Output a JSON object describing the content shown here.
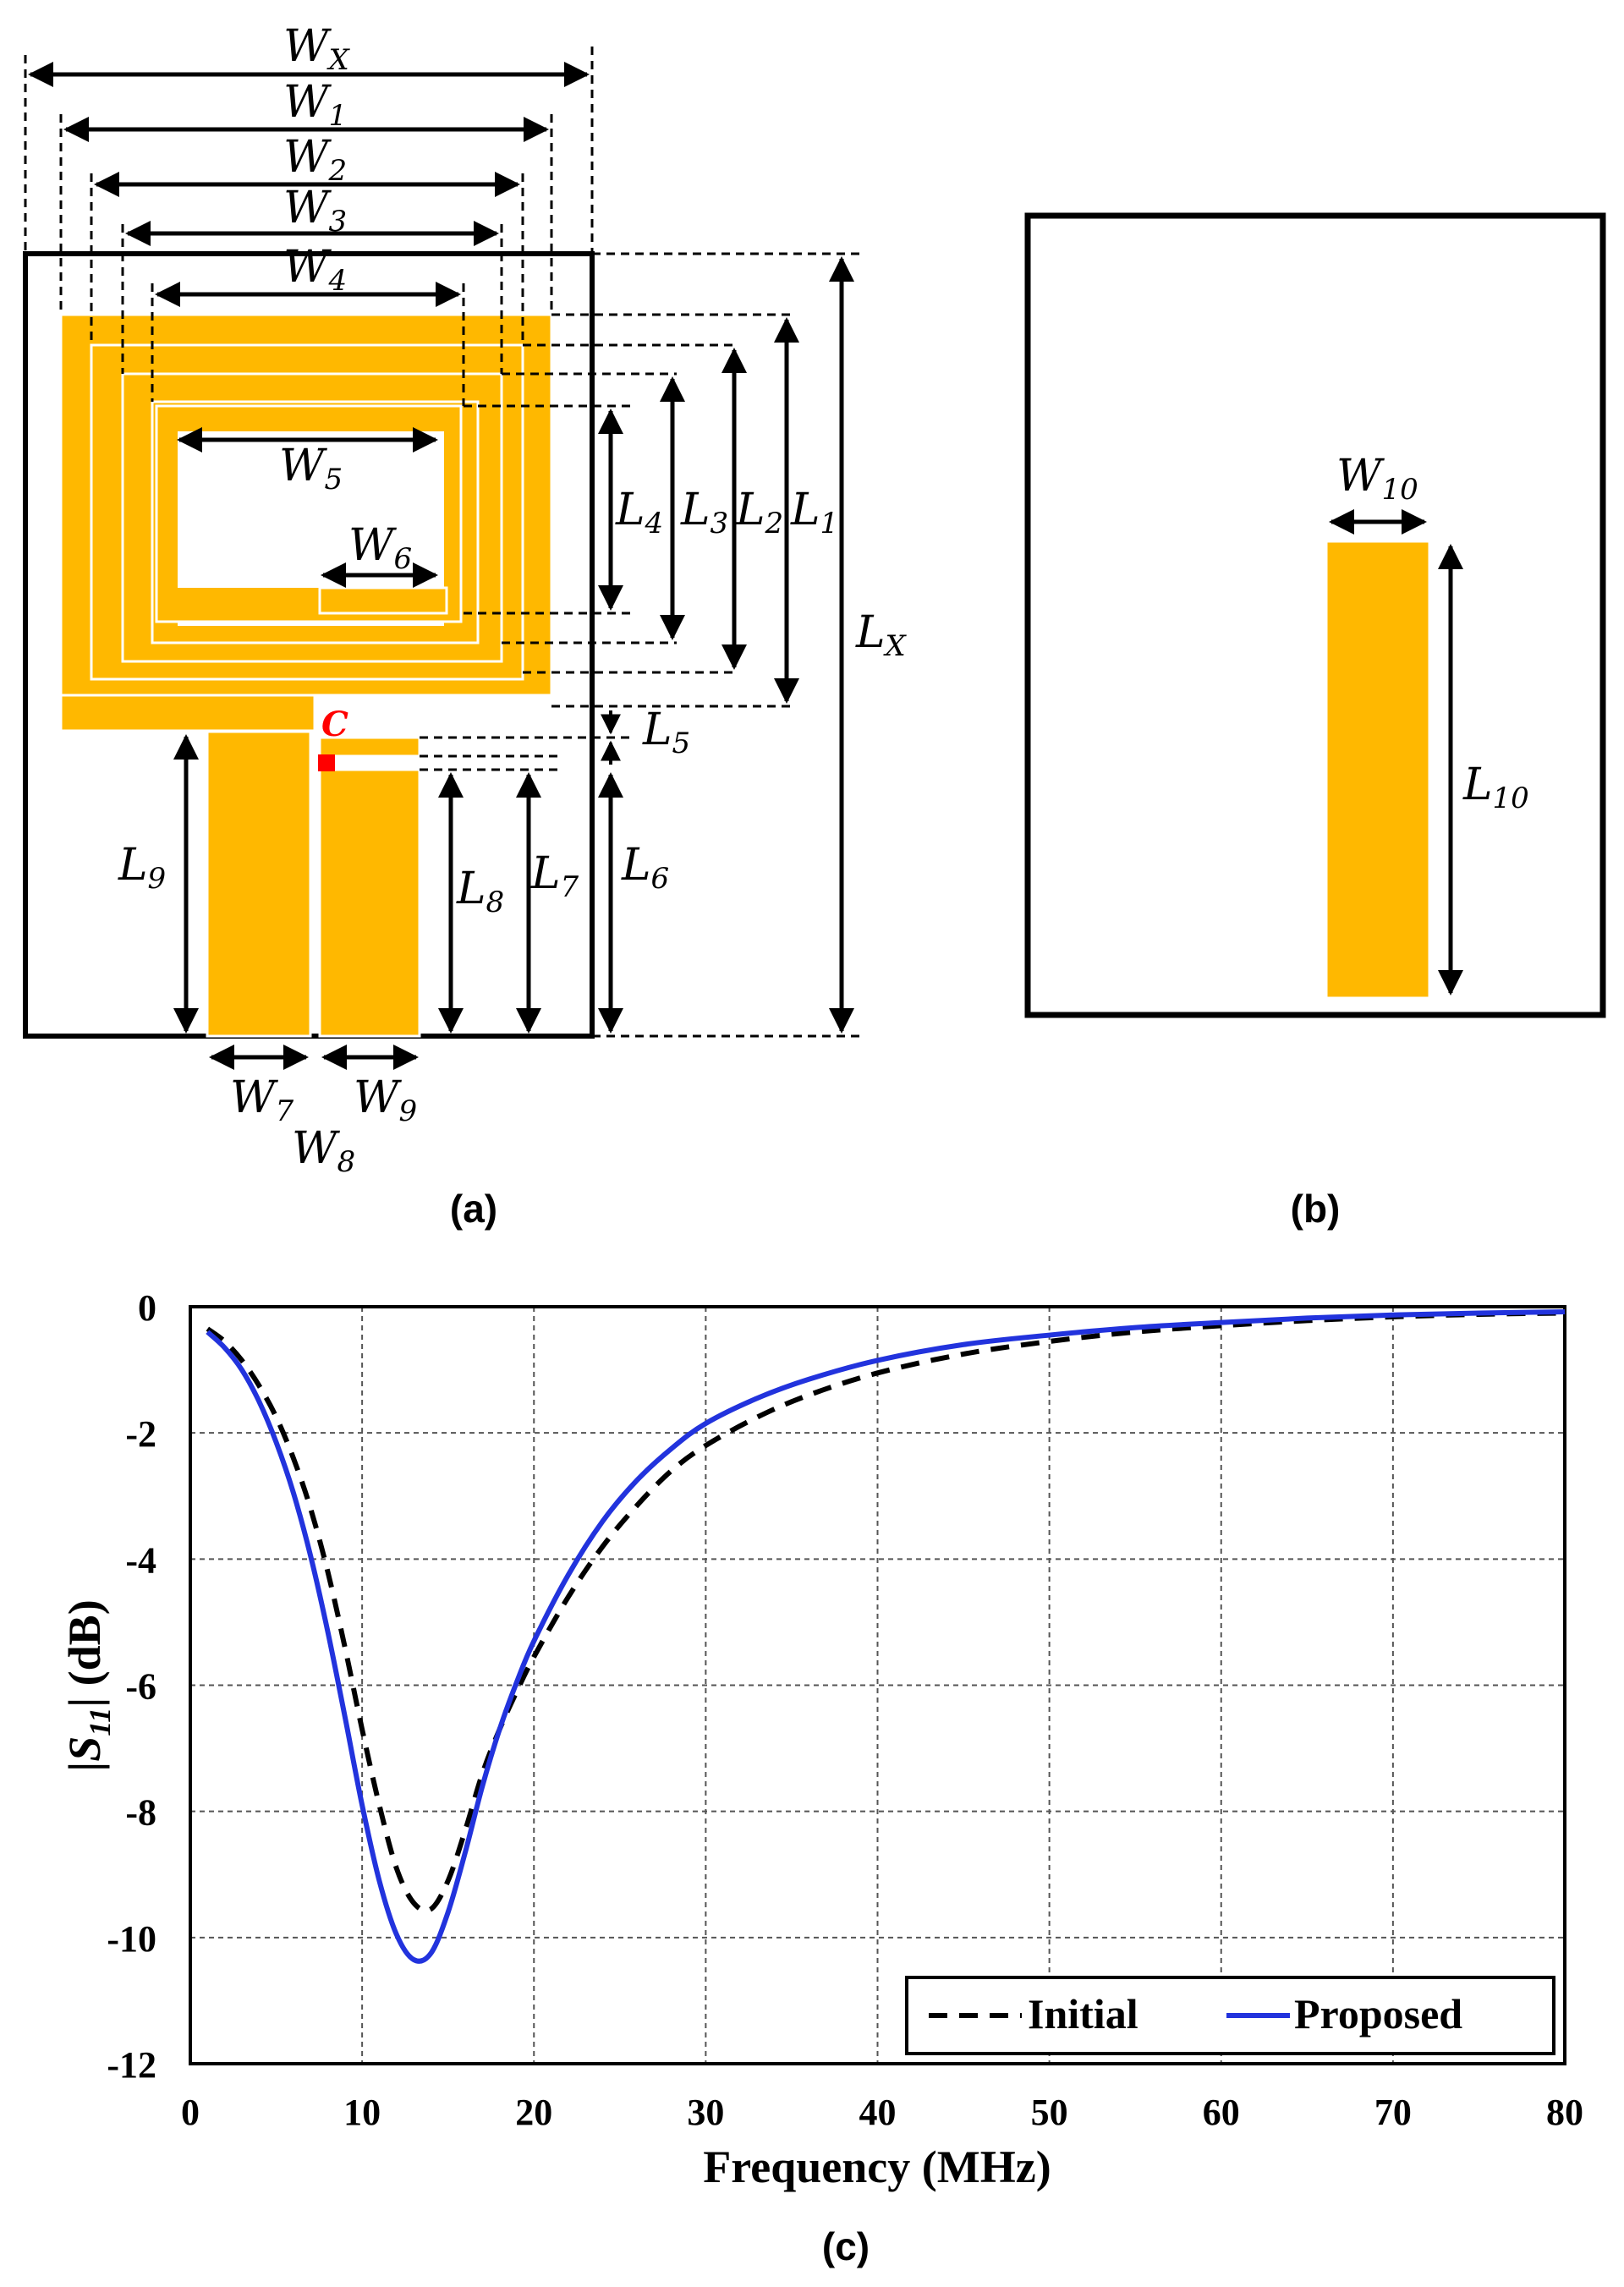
{
  "figure": {
    "panel_labels": [
      "(a)",
      "(b)",
      "(c)"
    ],
    "colors": {
      "copper": "#FFB800",
      "feed": "#FF0000",
      "initial_line": "#000000",
      "proposed_line": "#2233DD"
    }
  },
  "panel_a": {
    "width_labels": [
      {
        "base": "W",
        "sub": "X"
      },
      {
        "base": "W",
        "sub": "1"
      },
      {
        "base": "W",
        "sub": "2"
      },
      {
        "base": "W",
        "sub": "3"
      },
      {
        "base": "W",
        "sub": "4"
      },
      {
        "base": "W",
        "sub": "5"
      },
      {
        "base": "W",
        "sub": "6"
      },
      {
        "base": "W",
        "sub": "7"
      },
      {
        "base": "W",
        "sub": "8"
      },
      {
        "base": "W",
        "sub": "9"
      }
    ],
    "length_labels": [
      {
        "base": "L",
        "sub": "X"
      },
      {
        "base": "L",
        "sub": "1"
      },
      {
        "base": "L",
        "sub": "2"
      },
      {
        "base": "L",
        "sub": "3"
      },
      {
        "base": "L",
        "sub": "4"
      },
      {
        "base": "L",
        "sub": "5"
      },
      {
        "base": "L",
        "sub": "6"
      },
      {
        "base": "L",
        "sub": "7"
      },
      {
        "base": "L",
        "sub": "8"
      },
      {
        "base": "L",
        "sub": "9"
      }
    ],
    "feed_label": "C"
  },
  "panel_b": {
    "width_label": {
      "base": "W",
      "sub": "10"
    },
    "length_label": {
      "base": "L",
      "sub": "10"
    }
  },
  "chart_data": {
    "type": "line",
    "title": "",
    "xlabel": "Frequency (MHz)",
    "ylabel_parts": {
      "pre": "|",
      "base": "S",
      "sub": "11",
      "post": "| (dB)"
    },
    "xlim": [
      0,
      80
    ],
    "ylim": [
      -12,
      0
    ],
    "xticks": [
      0,
      10,
      20,
      30,
      40,
      50,
      60,
      70,
      80
    ],
    "yticks": [
      0,
      -2,
      -4,
      -6,
      -8,
      -10,
      -12
    ],
    "grid": true,
    "legend_position": "bottom-right",
    "series": [
      {
        "name": "Initial",
        "style": "dashed",
        "color": "#000000",
        "x": [
          1,
          2,
          3,
          4,
          5,
          6,
          7,
          8,
          9,
          10,
          11,
          12,
          13,
          14,
          15,
          16,
          17,
          18,
          19,
          20,
          22,
          24,
          26,
          28,
          30,
          33,
          36,
          40,
          45,
          50,
          55,
          60,
          65,
          70,
          75,
          80
        ],
        "y": [
          -0.35,
          -0.55,
          -0.85,
          -1.25,
          -1.75,
          -2.4,
          -3.2,
          -4.2,
          -5.4,
          -6.7,
          -7.9,
          -8.9,
          -9.45,
          -9.55,
          -9.1,
          -8.3,
          -7.4,
          -6.7,
          -6.1,
          -5.55,
          -4.6,
          -3.8,
          -3.15,
          -2.6,
          -2.2,
          -1.75,
          -1.4,
          -1.05,
          -0.75,
          -0.55,
          -0.4,
          -0.3,
          -0.22,
          -0.16,
          -0.12,
          -0.1
        ]
      },
      {
        "name": "Proposed",
        "style": "solid",
        "color": "#2233DD",
        "x": [
          1,
          2,
          3,
          4,
          5,
          6,
          7,
          8,
          9,
          10,
          11,
          12,
          13,
          14,
          15,
          16,
          17,
          18,
          19,
          20,
          22,
          24,
          26,
          28,
          30,
          33,
          36,
          40,
          45,
          50,
          55,
          60,
          65,
          70,
          75,
          80
        ],
        "y": [
          -0.4,
          -0.65,
          -1.0,
          -1.5,
          -2.15,
          -2.95,
          -3.95,
          -5.15,
          -6.5,
          -7.9,
          -9.1,
          -9.95,
          -10.35,
          -10.25,
          -9.6,
          -8.65,
          -7.6,
          -6.7,
          -5.95,
          -5.3,
          -4.25,
          -3.4,
          -2.75,
          -2.25,
          -1.85,
          -1.45,
          -1.15,
          -0.85,
          -0.6,
          -0.45,
          -0.33,
          -0.25,
          -0.18,
          -0.13,
          -0.1,
          -0.08
        ]
      }
    ]
  }
}
